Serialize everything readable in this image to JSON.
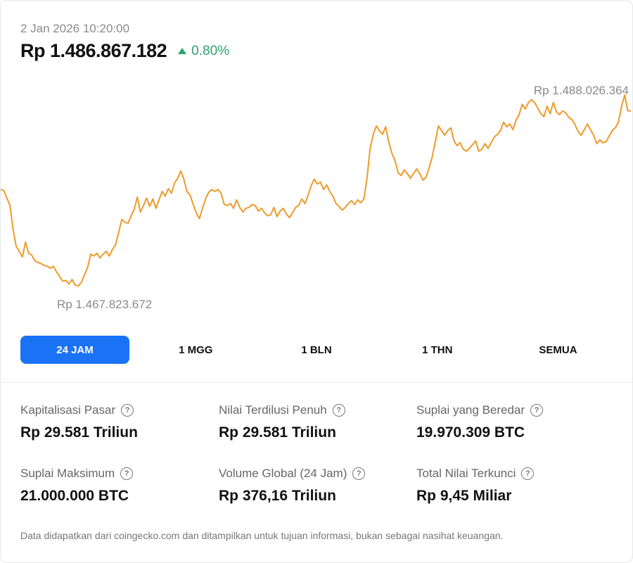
{
  "header": {
    "timestamp": "2 Jan 2026 10:20:00",
    "price": "Rp 1.486.867.182",
    "change": "0.80%",
    "change_direction": "up",
    "change_color": "#2ea36b"
  },
  "chart": {
    "high_label": "Rp 1.488.026.364",
    "low_label": "Rp 1.467.823.672",
    "line_color": "#f09a2a"
  },
  "chart_data": {
    "type": "line",
    "title": "",
    "xlabel": "",
    "ylabel": "",
    "y_unit": "Rp",
    "ylim": [
      1466500000,
      1489500000
    ],
    "high": 1488026364,
    "low": 1467823672,
    "series": [
      {
        "name": "",
        "values": [
          1478500000,
          1478400000,
          1477600000,
          1476800000,
          1474200000,
          1472400000,
          1471900000,
          1471300000,
          1472900000,
          1471700000,
          1471500000,
          1470900000,
          1470700000,
          1470600000,
          1470400000,
          1470300000,
          1470100000,
          1470300000,
          1469700000,
          1469200000,
          1468700000,
          1468800000,
          1468400000,
          1468900000,
          1468300000,
          1468200000,
          1468600000,
          1469400000,
          1470200000,
          1471600000,
          1471400000,
          1471700000,
          1471200000,
          1471600000,
          1471900000,
          1471400000,
          1472100000,
          1472600000,
          1473900000,
          1475300000,
          1475000000,
          1474900000,
          1475700000,
          1476400000,
          1477700000,
          1476100000,
          1476800000,
          1477600000,
          1476700000,
          1477500000,
          1476500000,
          1477400000,
          1478300000,
          1477800000,
          1478600000,
          1478100000,
          1479200000,
          1479700000,
          1480500000,
          1479600000,
          1478300000,
          1477900000,
          1476900000,
          1476000000,
          1475400000,
          1476500000,
          1477500000,
          1478200000,
          1478500000,
          1478300000,
          1478500000,
          1478100000,
          1476900000,
          1476800000,
          1477000000,
          1476500000,
          1477400000,
          1476600000,
          1476100000,
          1476500000,
          1476600000,
          1476900000,
          1476800000,
          1476200000,
          1476500000,
          1476000000,
          1475700000,
          1475800000,
          1476600000,
          1475600000,
          1476200000,
          1476500000,
          1475900000,
          1475500000,
          1476000000,
          1476600000,
          1476800000,
          1477500000,
          1477000000,
          1477900000,
          1478900000,
          1479600000,
          1479100000,
          1479300000,
          1478500000,
          1479000000,
          1478300000,
          1477800000,
          1477000000,
          1476700000,
          1476300000,
          1476600000,
          1477000000,
          1477300000,
          1476900000,
          1477400000,
          1477100000,
          1477500000,
          1479700000,
          1482900000,
          1484400000,
          1485300000,
          1484800000,
          1484400000,
          1485200000,
          1483600000,
          1482400000,
          1481600000,
          1480300000,
          1480000000,
          1480600000,
          1480200000,
          1479700000,
          1480200000,
          1480700000,
          1480200000,
          1479500000,
          1479800000,
          1480800000,
          1482000000,
          1483600000,
          1485300000,
          1484800000,
          1484300000,
          1484800000,
          1485100000,
          1483700000,
          1483200000,
          1483500000,
          1482800000,
          1482600000,
          1482900000,
          1483300000,
          1483700000,
          1482600000,
          1482800000,
          1483400000,
          1482900000,
          1483500000,
          1484100000,
          1484400000,
          1484800000,
          1485700000,
          1485200000,
          1485500000,
          1484900000,
          1485900000,
          1486500000,
          1487600000,
          1487100000,
          1487800000,
          1488100000,
          1487800000,
          1487200000,
          1486600000,
          1486300000,
          1487400000,
          1486600000,
          1487800000,
          1486800000,
          1486500000,
          1486900000,
          1486700000,
          1486200000,
          1486000000,
          1485400000,
          1484700000,
          1484300000,
          1484900000,
          1485500000,
          1484900000,
          1484300000,
          1483400000,
          1483800000,
          1483500000,
          1483600000,
          1484200000,
          1484800000,
          1485100000,
          1485700000,
          1487400000,
          1488600000,
          1486900000,
          1486900000
        ]
      }
    ],
    "grid": false,
    "legend": "none"
  },
  "ranges": {
    "items": [
      "24 JAM",
      "1 MGG",
      "1 BLN",
      "1 THN",
      "SEMUA"
    ],
    "active_index": 0,
    "active_color": "#1a73f5"
  },
  "stats": [
    {
      "label": "Kapitalisasi Pasar",
      "value": "Rp 29.581 Triliun"
    },
    {
      "label": "Nilai Terdilusi Penuh",
      "value": "Rp 29.581 Triliun"
    },
    {
      "label": "Suplai yang Beredar",
      "value": "19.970.309 BTC"
    },
    {
      "label": "Suplai Maksimum",
      "value": "21.000.000 BTC"
    },
    {
      "label": "Volume Global (24 Jam)",
      "value": "Rp 376,16 Triliun"
    },
    {
      "label": "Total Nilai Terkunci",
      "value": "Rp 9,45 Miliar"
    }
  ],
  "footer": {
    "disclaimer": "Data didapatkan dari coingecko.com dan ditampilkan untuk tujuan informasi, bukan sebagai nasihat keuangan."
  }
}
